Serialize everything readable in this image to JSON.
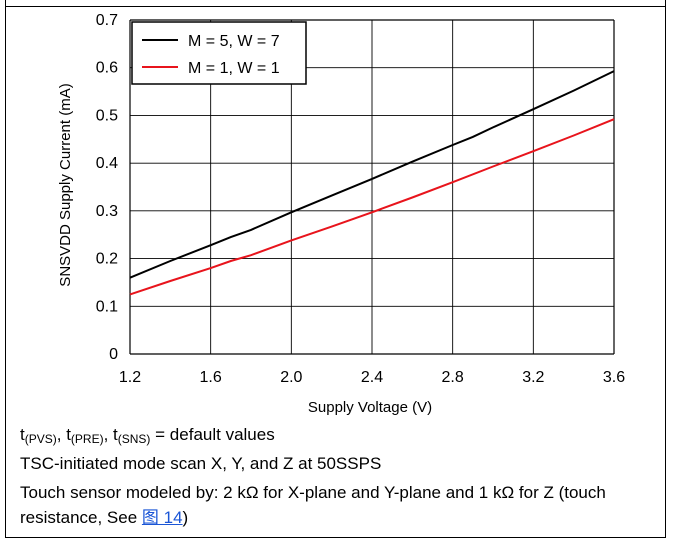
{
  "chart_data": {
    "type": "line",
    "title": "",
    "xlabel": "Supply Voltage (V)",
    "ylabel": "SNSVDD Supply Current (mA)",
    "xlim": [
      1.2,
      3.6
    ],
    "ylim": [
      0,
      0.7
    ],
    "x_ticks": [
      "1.2",
      "1.6",
      "2.0",
      "2.4",
      "2.8",
      "3.2",
      "3.6"
    ],
    "y_ticks": [
      "0",
      "0.1",
      "0.2",
      "0.3",
      "0.4",
      "0.5",
      "0.6",
      "0.7"
    ],
    "grid": true,
    "legend_position": "top-left",
    "series": [
      {
        "name": "M = 5, W = 7",
        "color": "#000000",
        "x": [
          1.2,
          1.4,
          1.6,
          1.7,
          1.8,
          2.0,
          2.2,
          2.4,
          2.6,
          2.8,
          2.9,
          3.0,
          3.2,
          3.4,
          3.6
        ],
        "y": [
          0.16,
          0.195,
          0.228,
          0.245,
          0.26,
          0.297,
          0.332,
          0.367,
          0.403,
          0.438,
          0.455,
          0.475,
          0.513,
          0.552,
          0.593
        ]
      },
      {
        "name": "M = 1, W = 1",
        "color": "#e8141c",
        "x": [
          1.2,
          1.4,
          1.6,
          1.7,
          1.8,
          2.0,
          2.2,
          2.4,
          2.6,
          2.8,
          3.0,
          3.2,
          3.4,
          3.6
        ],
        "y": [
          0.125,
          0.153,
          0.18,
          0.195,
          0.207,
          0.238,
          0.267,
          0.297,
          0.328,
          0.36,
          0.393,
          0.425,
          0.458,
          0.492
        ]
      }
    ]
  },
  "notes": {
    "line1": {
      "t": "t",
      "sub1": "(PVS)",
      "sep1": ", t",
      "sub2": "(PRE)",
      "sep2": ", t",
      "sub3": "(SNS)",
      "rest": " = default values"
    },
    "line2": "TSC-initiated mode scan X, Y, and Z at 50SSPS",
    "line3_text": "Touch sensor modeled by: 2 kΩ for X-plane and Y-plane and 1 kΩ for Z (touch resistance, See ",
    "line3_link": "图 14",
    "line3_end": ")"
  }
}
